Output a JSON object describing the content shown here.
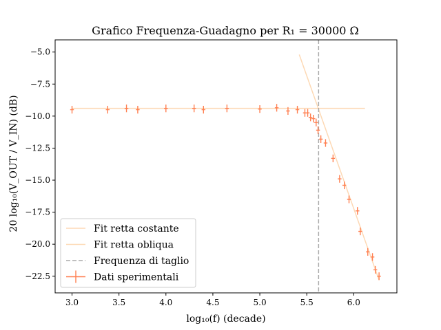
{
  "chart_data": {
    "type": "scatter",
    "title": "Grafico Frequenza-Guadagno per R₁ = 30000 Ω",
    "xlabel": "log₁₀(f) (decade)",
    "ylabel": "20 log₁₀(V_OUT / V_IN) (dB)",
    "xlim": [
      2.82,
      6.46
    ],
    "ylim": [
      -23.8,
      -4.05
    ],
    "x_ticks": [
      3.0,
      3.5,
      4.0,
      4.5,
      5.0,
      5.5,
      6.0
    ],
    "x_tick_labels": [
      "3.0",
      "3.5",
      "4.0",
      "4.5",
      "5.0",
      "5.5",
      "6.0"
    ],
    "y_ticks": [
      -5.0,
      -7.5,
      -10.0,
      -12.5,
      -15.0,
      -17.5,
      -20.0,
      -22.5
    ],
    "y_tick_labels": [
      "−5.0",
      "−7.5",
      "−10.0",
      "−12.5",
      "−15.0",
      "−17.5",
      "−20.0",
      "−22.5"
    ],
    "grid": false,
    "legend_position": "lower-left",
    "legend": [
      "Fit retta costante",
      "Fit retta obliqua",
      "Frequenza di taglio",
      "Dati sperimentali"
    ],
    "series": [
      {
        "name": "Dati sperimentali",
        "kind": "errorbar",
        "color": "#ff7f50",
        "x_err": 0.02,
        "y_err": 0.3,
        "x": [
          3.0,
          3.38,
          3.58,
          3.7,
          4.0,
          4.3,
          4.4,
          4.65,
          5.0,
          5.18,
          5.3,
          5.4,
          5.48,
          5.51,
          5.54,
          5.57,
          5.6,
          5.62,
          5.65,
          5.7,
          5.78,
          5.85,
          5.9,
          5.95,
          6.04,
          6.07,
          6.15,
          6.2,
          6.23,
          6.27
        ],
        "y": [
          -9.5,
          -9.5,
          -9.4,
          -9.5,
          -9.4,
          -9.4,
          -9.5,
          -9.4,
          -9.45,
          -9.35,
          -9.6,
          -9.5,
          -9.75,
          -9.75,
          -10.1,
          -10.2,
          -10.5,
          -11.1,
          -11.8,
          -12.1,
          -13.3,
          -14.9,
          -15.4,
          -16.5,
          -17.4,
          -19.0,
          -20.6,
          -21.0,
          -22.0,
          -22.5
        ]
      },
      {
        "name": "Fit retta costante",
        "kind": "line",
        "color": "#fdd9b5",
        "x": [
          3.0,
          6.12
        ],
        "y": [
          -9.4,
          -9.4
        ]
      },
      {
        "name": "Fit retta obliqua",
        "kind": "line",
        "color": "#fdd9b5",
        "x": [
          5.42,
          6.27
        ],
        "y": [
          -5.2,
          -22.8
        ]
      },
      {
        "name": "Frequenza di taglio",
        "kind": "vline",
        "color": "#aaaaaa",
        "x": 5.626
      }
    ]
  }
}
